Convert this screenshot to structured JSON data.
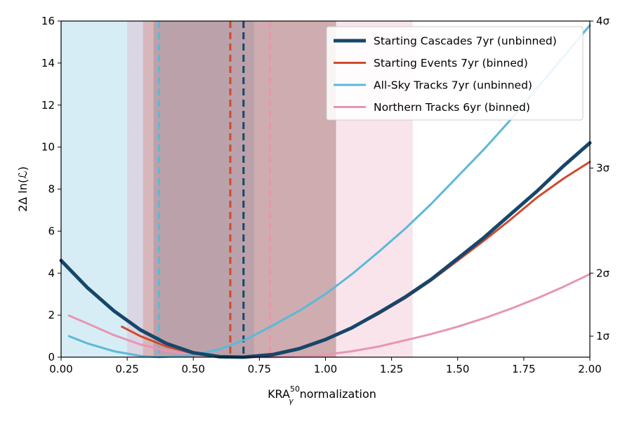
{
  "chart_data": {
    "type": "line",
    "xlabel": "KRA",
    "xlabel_sup": "50",
    "xlabel_sub": "γ",
    "xlabel_suffix": " normalization",
    "ylabel": "2Δ ln(ℒ)",
    "xlim": [
      0.0,
      2.0
    ],
    "ylim": [
      0,
      16
    ],
    "x_ticks": [
      "0.00",
      "0.25",
      "0.50",
      "0.75",
      "1.00",
      "1.25",
      "1.50",
      "1.75",
      "2.00"
    ],
    "y_ticks": [
      "0",
      "2",
      "4",
      "6",
      "8",
      "10",
      "12",
      "14",
      "16"
    ],
    "right_axis": {
      "ticks": [
        {
          "label": "1σ",
          "y": 1.0
        },
        {
          "label": "2σ",
          "y": 4.0
        },
        {
          "label": "3σ",
          "y": 9.0
        },
        {
          "label": "4σ",
          "y": 16.0
        }
      ]
    },
    "legend_position": "top-right",
    "grid": false,
    "series": [
      {
        "name": "Starting Cascades 7yr (unbinned)",
        "color": "#17466b",
        "style": "thick",
        "best_fit": 0.69,
        "interval": [
          0.35,
          1.04
        ],
        "points": [
          [
            0.0,
            4.6
          ],
          [
            0.1,
            3.3
          ],
          [
            0.2,
            2.2
          ],
          [
            0.3,
            1.3
          ],
          [
            0.4,
            0.64
          ],
          [
            0.5,
            0.21
          ],
          [
            0.6,
            0.02
          ],
          [
            0.69,
            0.0
          ],
          [
            0.8,
            0.12
          ],
          [
            0.9,
            0.4
          ],
          [
            1.0,
            0.84
          ],
          [
            1.1,
            1.4
          ],
          [
            1.2,
            2.1
          ],
          [
            1.3,
            2.85
          ],
          [
            1.4,
            3.7
          ],
          [
            1.5,
            4.7
          ],
          [
            1.6,
            5.7
          ],
          [
            1.7,
            6.8
          ],
          [
            1.8,
            7.9
          ],
          [
            1.9,
            9.1
          ],
          [
            2.0,
            10.2
          ]
        ]
      },
      {
        "name": "Starting Events 7yr (binned)",
        "color": "#cf4a2e",
        "style": "solid",
        "best_fit": 0.64,
        "interval": [
          0.31,
          1.04
        ],
        "points": [
          [
            0.23,
            1.45
          ],
          [
            0.3,
            1.0
          ],
          [
            0.4,
            0.5
          ],
          [
            0.5,
            0.17
          ],
          [
            0.6,
            0.02
          ],
          [
            0.64,
            0.0
          ],
          [
            0.7,
            0.02
          ],
          [
            0.8,
            0.15
          ],
          [
            0.9,
            0.42
          ],
          [
            1.0,
            0.84
          ],
          [
            1.1,
            1.38
          ],
          [
            1.2,
            2.05
          ],
          [
            1.3,
            2.8
          ],
          [
            1.4,
            3.65
          ],
          [
            1.5,
            4.6
          ],
          [
            1.6,
            5.55
          ],
          [
            1.7,
            6.55
          ],
          [
            1.8,
            7.6
          ],
          [
            1.9,
            8.5
          ],
          [
            2.0,
            9.3
          ]
        ]
      },
      {
        "name": "All-Sky Tracks 7yr (unbinned)",
        "color": "#5cb8d8",
        "style": "solid",
        "best_fit": 0.37,
        "interval": [
          0.0,
          0.73
        ],
        "points": [
          [
            0.03,
            1.0
          ],
          [
            0.1,
            0.65
          ],
          [
            0.2,
            0.28
          ],
          [
            0.3,
            0.06
          ],
          [
            0.37,
            0.0
          ],
          [
            0.5,
            0.1
          ],
          [
            0.6,
            0.38
          ],
          [
            0.7,
            0.85
          ],
          [
            0.8,
            1.5
          ],
          [
            0.9,
            2.2
          ],
          [
            1.0,
            3.0
          ],
          [
            1.1,
            3.95
          ],
          [
            1.2,
            5.0
          ],
          [
            1.3,
            6.1
          ],
          [
            1.4,
            7.3
          ],
          [
            1.5,
            8.6
          ],
          [
            1.6,
            9.9
          ],
          [
            1.7,
            11.3
          ],
          [
            1.8,
            12.8
          ],
          [
            1.9,
            14.3
          ],
          [
            2.0,
            15.8
          ]
        ]
      },
      {
        "name": "Northern Tracks 6yr (binned)",
        "color": "#e895b3",
        "style": "solid",
        "best_fit": 0.79,
        "interval": [
          0.25,
          1.33
        ],
        "points": [
          [
            0.03,
            1.98
          ],
          [
            0.1,
            1.6
          ],
          [
            0.2,
            1.05
          ],
          [
            0.3,
            0.6
          ],
          [
            0.4,
            0.3
          ],
          [
            0.5,
            0.12
          ],
          [
            0.6,
            0.03
          ],
          [
            0.7,
            0.0
          ],
          [
            0.79,
            0.0
          ],
          [
            0.9,
            0.03
          ],
          [
            1.0,
            0.12
          ],
          [
            1.1,
            0.28
          ],
          [
            1.2,
            0.5
          ],
          [
            1.3,
            0.8
          ],
          [
            1.4,
            1.1
          ],
          [
            1.5,
            1.45
          ],
          [
            1.6,
            1.85
          ],
          [
            1.7,
            2.3
          ],
          [
            1.8,
            2.8
          ],
          [
            1.9,
            3.35
          ],
          [
            2.0,
            3.95
          ]
        ]
      }
    ]
  }
}
